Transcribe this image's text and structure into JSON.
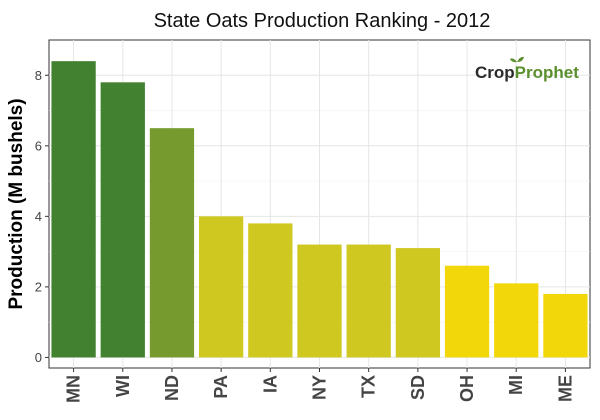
{
  "chart_data": {
    "type": "bar",
    "title": "State Oats Production Ranking - 2012",
    "xlabel": "",
    "ylabel": "Production (M bushels)",
    "ylim": [
      -0.3,
      9.0
    ],
    "yticks": [
      0,
      2,
      4,
      6,
      8
    ],
    "grid": true,
    "legend": "none",
    "categories": [
      "MN",
      "WI",
      "ND",
      "PA",
      "IA",
      "NY",
      "TX",
      "SD",
      "OH",
      "MI",
      "ME"
    ],
    "values": [
      8.4,
      7.8,
      6.5,
      4.0,
      3.8,
      3.2,
      3.2,
      3.1,
      2.6,
      2.1,
      1.8
    ],
    "colors": [
      "#41812f",
      "#41812f",
      "#769a2e",
      "#cec820",
      "#cec820",
      "#cec820",
      "#cec820",
      "#cec820",
      "#f2d80a",
      "#f2d80a",
      "#f2d80a"
    ]
  },
  "brand": {
    "part1": "Crop",
    "part2": "Prophet"
  }
}
